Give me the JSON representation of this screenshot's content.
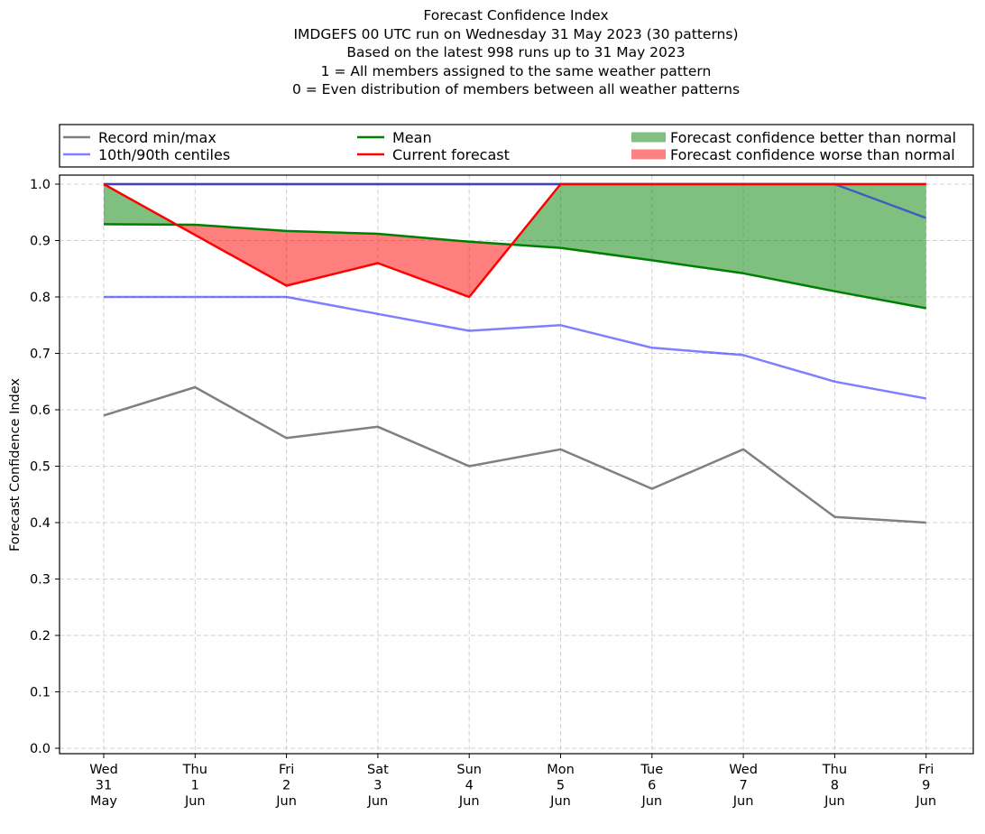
{
  "chart_data": {
    "type": "line",
    "title": "Forecast Confidence Index",
    "subtitle_lines": [
      "IMDGEFS 00 UTC run on Wednesday 31 May 2023 (30 patterns)",
      "Based on the latest 998 runs up to 31 May 2023",
      "1 = All members assigned to the same weather pattern",
      "0 = Even distribution of members between all weather patterns"
    ],
    "xlabel": "",
    "ylabel": "Forecast Confidence Index",
    "ylim": [
      0.0,
      1.0
    ],
    "yticks": [
      "0.0",
      "0.1",
      "0.2",
      "0.3",
      "0.4",
      "0.5",
      "0.6",
      "0.7",
      "0.8",
      "0.9",
      "1.0"
    ],
    "grid": true,
    "legend_position": "top (above plot, 3 columns)",
    "categories": [
      [
        "Wed",
        "31",
        "May"
      ],
      [
        "Thu",
        "1",
        "Jun"
      ],
      [
        "Fri",
        "2",
        "Jun"
      ],
      [
        "Sat",
        "3",
        "Jun"
      ],
      [
        "Sun",
        "4",
        "Jun"
      ],
      [
        "Mon",
        "5",
        "Jun"
      ],
      [
        "Tue",
        "6",
        "Jun"
      ],
      [
        "Wed",
        "7",
        "Jun"
      ],
      [
        "Thu",
        "8",
        "Jun"
      ],
      [
        "Fri",
        "9",
        "Jun"
      ]
    ],
    "series": [
      {
        "name": "Record min/max",
        "role": "record_min",
        "color": "#808080",
        "values": [
          0.59,
          0.64,
          0.55,
          0.57,
          0.5,
          0.53,
          0.46,
          0.53,
          0.41,
          0.4
        ]
      },
      {
        "name": "Record min/max",
        "role": "record_max",
        "color": "#808080",
        "values": [
          1.0,
          1.0,
          1.0,
          1.0,
          1.0,
          1.0,
          1.0,
          1.0,
          1.0,
          1.0
        ]
      },
      {
        "name": "10th/90th centiles",
        "role": "p10",
        "color": "#8080ff",
        "values": [
          0.8,
          0.8,
          0.8,
          0.77,
          0.74,
          0.75,
          0.71,
          0.697,
          0.65,
          0.62
        ]
      },
      {
        "name": "10th/90th centiles",
        "role": "p90",
        "color": "#8080ff",
        "values": [
          1.0,
          1.0,
          1.0,
          1.0,
          1.0,
          1.0,
          1.0,
          1.0,
          1.0,
          0.94
        ]
      },
      {
        "name": "Mean",
        "role": "mean",
        "color": "#008000",
        "values": [
          0.929,
          0.928,
          0.917,
          0.912,
          0.898,
          0.887,
          0.865,
          0.842,
          0.81,
          0.78
        ]
      },
      {
        "name": "Current forecast",
        "role": "current",
        "color": "#ff0000",
        "values": [
          1.0,
          0.91,
          0.82,
          0.86,
          0.8,
          1.0,
          1.0,
          1.0,
          1.0,
          1.0
        ]
      }
    ],
    "fills": [
      {
        "name": "Forecast confidence better than normal",
        "color": "#008000",
        "opacity": 0.5
      },
      {
        "name": "Forecast confidence worse than normal",
        "color": "#ff0000",
        "opacity": 0.5
      }
    ],
    "legend": [
      {
        "label": "Record min/max",
        "kind": "line",
        "color": "#808080"
      },
      {
        "label": "10th/90th centiles",
        "kind": "line",
        "color": "#8080ff"
      },
      {
        "label": "Mean",
        "kind": "line",
        "color": "#008000"
      },
      {
        "label": "Current forecast",
        "kind": "line",
        "color": "#ff0000"
      },
      {
        "label": "Forecast confidence better than normal",
        "kind": "patch",
        "color": "#80c080"
      },
      {
        "label": "Forecast confidence worse than normal",
        "kind": "patch",
        "color": "#ff8080"
      }
    ]
  }
}
